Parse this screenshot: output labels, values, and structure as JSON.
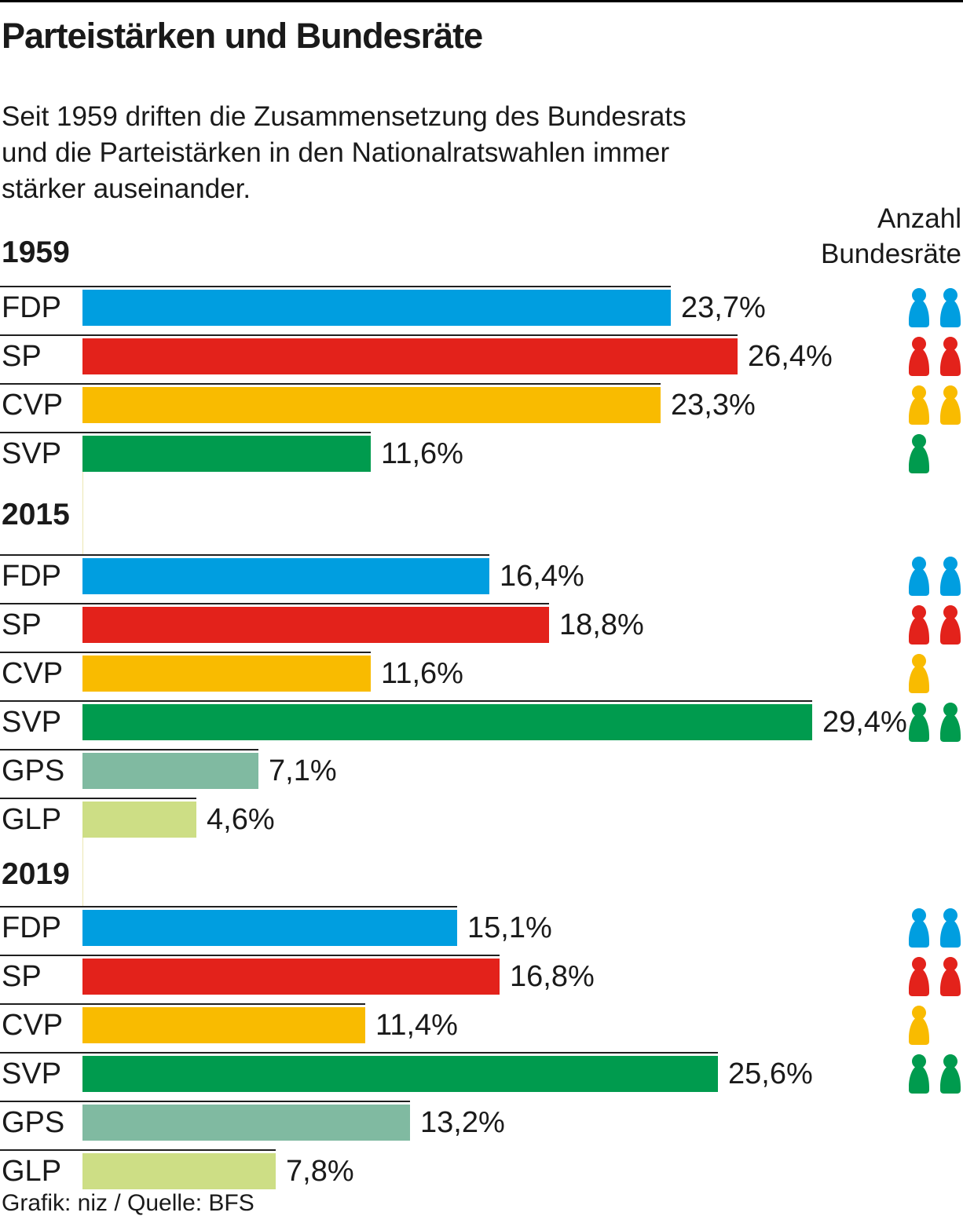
{
  "title": "Parteistärken und Bundesräte",
  "intro_lines": [
    "Seit 1959 driften die Zusammensetzung des Bundesrats",
    "und die Parteistärken in den Nationalratswahlen immer",
    "stärker auseinander."
  ],
  "right_header": {
    "line1": "Anzahl",
    "line2": "Bundesräte"
  },
  "footer": "Grafik: niz / Quelle: BFS",
  "party_colors": {
    "FDP": "#009EE0",
    "SP": "#E3221B",
    "CVP": "#F9BB00",
    "SVP": "#009B4E",
    "GPS": "#80BAA1",
    "GLP": "#CDDE85"
  },
  "chart_data": {
    "type": "bar",
    "orientation": "horizontal",
    "value_unit": "%",
    "xlim": [
      0,
      30
    ],
    "right_column_label": "Anzahl Bundesräte",
    "sections": [
      {
        "year": "1959",
        "rows": [
          {
            "party": "FDP",
            "value": 23.7,
            "display": "23,7%",
            "councillors": 2
          },
          {
            "party": "SP",
            "value": 26.4,
            "display": "26,4%",
            "councillors": 2
          },
          {
            "party": "CVP",
            "value": 23.3,
            "display": "23,3%",
            "councillors": 2
          },
          {
            "party": "SVP",
            "value": 11.6,
            "display": "11,6%",
            "councillors": 1
          }
        ]
      },
      {
        "year": "2015",
        "rows": [
          {
            "party": "FDP",
            "value": 16.4,
            "display": "16,4%",
            "councillors": 2
          },
          {
            "party": "SP",
            "value": 18.8,
            "display": "18,8%",
            "councillors": 2
          },
          {
            "party": "CVP",
            "value": 11.6,
            "display": "11,6%",
            "councillors": 1
          },
          {
            "party": "SVP",
            "value": 29.4,
            "display": "29,4%",
            "councillors": 2
          },
          {
            "party": "GPS",
            "value": 7.1,
            "display": "7,1%",
            "councillors": 0
          },
          {
            "party": "GLP",
            "value": 4.6,
            "display": "4,6%",
            "councillors": 0
          }
        ]
      },
      {
        "year": "2019",
        "rows": [
          {
            "party": "FDP",
            "value": 15.1,
            "display": "15,1%",
            "councillors": 2
          },
          {
            "party": "SP",
            "value": 16.8,
            "display": "16,8%",
            "councillors": 2
          },
          {
            "party": "CVP",
            "value": 11.4,
            "display": "11,4%",
            "councillors": 1
          },
          {
            "party": "SVP",
            "value": 25.6,
            "display": "25,6%",
            "councillors": 2
          },
          {
            "party": "GPS",
            "value": 13.2,
            "display": "13,2%",
            "councillors": 0
          },
          {
            "party": "GLP",
            "value": 7.8,
            "display": "7,8%",
            "councillors": 0
          }
        ]
      }
    ]
  }
}
